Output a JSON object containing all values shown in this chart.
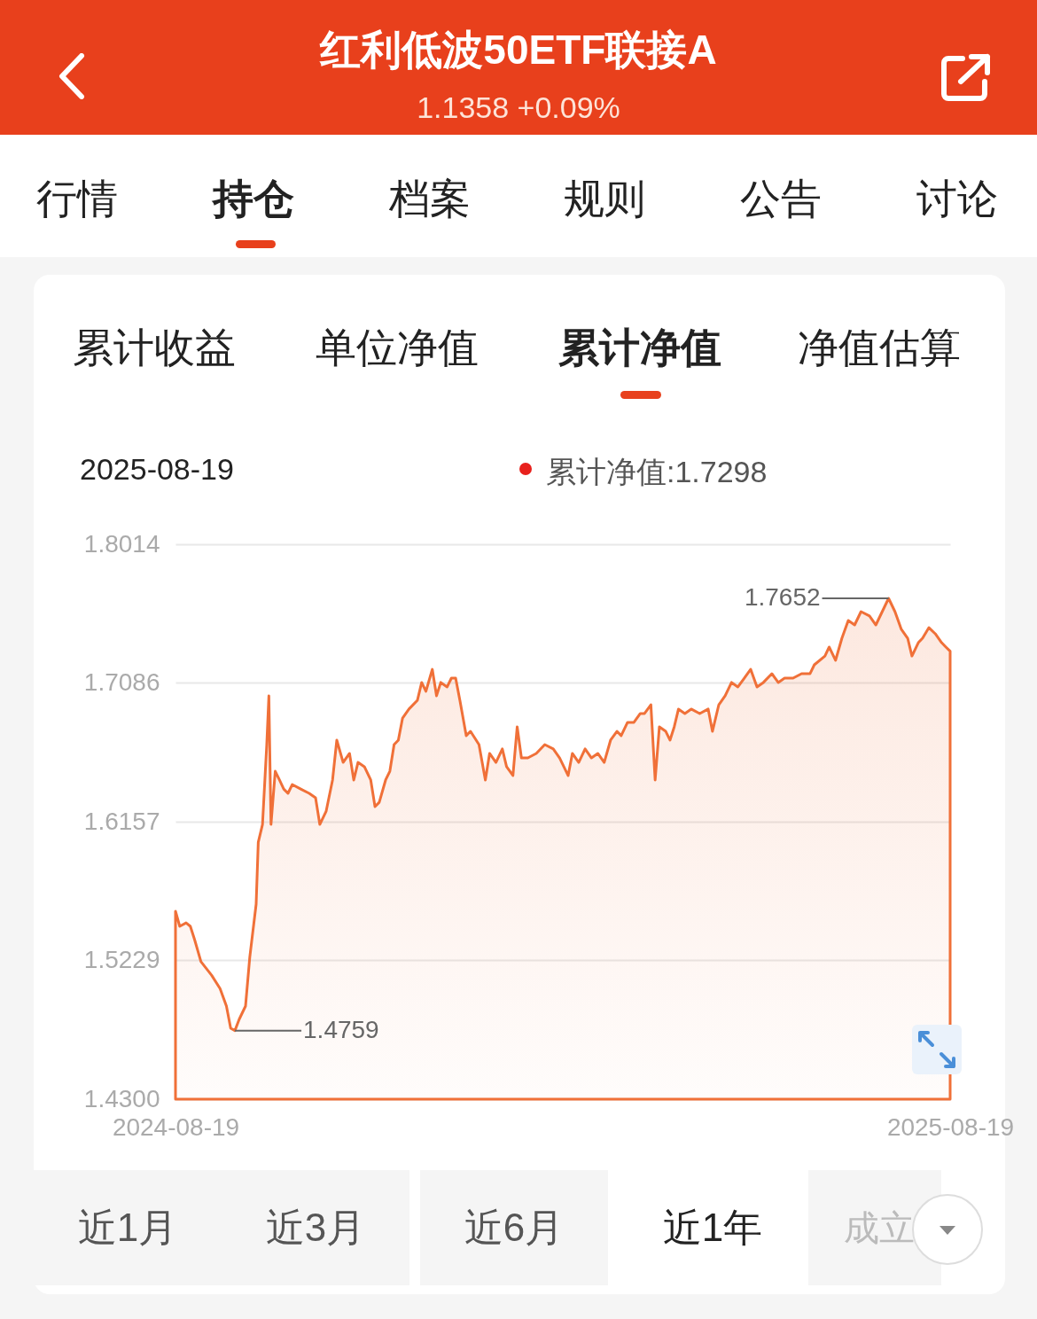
{
  "chart_data": {
    "type": "area",
    "title": "红利低波50ETF联接A",
    "subtitle": "1.1358 +0.09%",
    "x": [
      "2024-08-19",
      "2024-08-21",
      "2024-08-24",
      "2024-08-26",
      "2024-08-28",
      "2024-08-31",
      "2024-09-05",
      "2024-09-09",
      "2024-09-12",
      "2024-09-14",
      "2024-09-16",
      "2024-09-18",
      "2024-09-21",
      "2024-09-23",
      "2024-09-26",
      "2024-09-27",
      "2024-09-29",
      "2024-10-01",
      "2024-10-02",
      "2024-10-03",
      "2024-10-05",
      "2024-10-07",
      "2024-10-09",
      "2024-10-11",
      "2024-10-13",
      "2024-10-17",
      "2024-10-21",
      "2024-10-24",
      "2024-10-26",
      "2024-10-29",
      "2024-11-01",
      "2024-11-03",
      "2024-11-06",
      "2024-11-09",
      "2024-11-11",
      "2024-11-13",
      "2024-11-16",
      "2024-11-19",
      "2024-11-21",
      "2024-11-23",
      "2024-11-26",
      "2024-11-28",
      "2024-11-30",
      "2024-12-02",
      "2024-12-04",
      "2024-12-07",
      "2024-12-11",
      "2024-12-13",
      "2024-12-15",
      "2024-12-18",
      "2024-12-20",
      "2024-12-22",
      "2024-12-25",
      "2024-12-27",
      "2024-12-29",
      "2024-12-31",
      "2025-01-03",
      "2025-01-05",
      "2025-01-09",
      "2025-01-12",
      "2025-01-14",
      "2025-01-17",
      "2025-01-20",
      "2025-01-22",
      "2025-01-25",
      "2025-01-27",
      "2025-01-29",
      "2025-02-01",
      "2025-02-05",
      "2025-02-09",
      "2025-02-13",
      "2025-02-16",
      "2025-02-20",
      "2025-02-22",
      "2025-02-25",
      "2025-02-28",
      "2025-03-03",
      "2025-03-06",
      "2025-03-09",
      "2025-03-12",
      "2025-03-15",
      "2025-03-17",
      "2025-03-20",
      "2025-03-23",
      "2025-03-26",
      "2025-03-28",
      "2025-03-31",
      "2025-04-02",
      "2025-04-04",
      "2025-04-07",
      "2025-04-09",
      "2025-04-11",
      "2025-04-13",
      "2025-04-16",
      "2025-04-19",
      "2025-04-23",
      "2025-04-27",
      "2025-04-29",
      "2025-05-02",
      "2025-05-05",
      "2025-05-08",
      "2025-05-11",
      "2025-05-14",
      "2025-05-17",
      "2025-05-20",
      "2025-05-23",
      "2025-05-27",
      "2025-05-30",
      "2025-06-02",
      "2025-06-06",
      "2025-06-10",
      "2025-06-14",
      "2025-06-16",
      "2025-06-21",
      "2025-06-23",
      "2025-06-26",
      "2025-06-29",
      "2025-07-02",
      "2025-07-05",
      "2025-07-08",
      "2025-07-12",
      "2025-07-15",
      "2025-07-18",
      "2025-07-21",
      "2025-07-24",
      "2025-07-27",
      "2025-07-30",
      "2025-08-01",
      "2025-08-04",
      "2025-08-06",
      "2025-08-09",
      "2025-08-12",
      "2025-08-15",
      "2025-08-17",
      "2025-08-19"
    ],
    "series": [
      {
        "color": "#f07038",
        "values": [
          1.5558,
          1.5457,
          1.548,
          1.5457,
          1.5368,
          1.522,
          1.513,
          1.504,
          1.4923,
          1.4775,
          1.4759,
          1.4834,
          1.4923,
          1.525,
          1.5605,
          1.602,
          1.6139,
          1.6673,
          1.6999,
          1.6139,
          1.6495,
          1.6436,
          1.6376,
          1.6347,
          1.6406,
          1.6376,
          1.6347,
          1.6317,
          1.6139,
          1.6228,
          1.6436,
          1.6703,
          1.6554,
          1.6614,
          1.6436,
          1.6554,
          1.6525,
          1.6436,
          1.6258,
          1.6287,
          1.6436,
          1.6495,
          1.6673,
          1.6703,
          1.6851,
          1.6911,
          1.697,
          1.7089,
          1.703,
          1.7177,
          1.7,
          1.7089,
          1.7059,
          1.7118,
          1.7118,
          1.697,
          1.6733,
          1.6762,
          1.6673,
          1.6436,
          1.6614,
          1.6554,
          1.6644,
          1.6525,
          1.6466,
          1.6792,
          1.6584,
          1.6584,
          1.6614,
          1.6673,
          1.6644,
          1.6584,
          1.6466,
          1.6614,
          1.6554,
          1.6644,
          1.6584,
          1.6614,
          1.6554,
          1.6703,
          1.6762,
          1.6733,
          1.6822,
          1.6822,
          1.6881,
          1.6881,
          1.694,
          1.6436,
          1.6792,
          1.6762,
          1.6703,
          1.6792,
          1.6911,
          1.6881,
          1.6911,
          1.6881,
          1.6911,
          1.6762,
          1.694,
          1.7,
          1.7089,
          1.7059,
          1.7118,
          1.7177,
          1.7059,
          1.7089,
          1.7148,
          1.7089,
          1.7118,
          1.7118,
          1.7148,
          1.7148,
          1.7207,
          1.7266,
          1.7326,
          1.7237,
          1.7385,
          1.7504,
          1.7474,
          1.7563,
          1.7534,
          1.7474,
          1.7563,
          1.7652,
          1.7563,
          1.7445,
          1.7385,
          1.7266,
          1.7355,
          1.7385,
          1.7456,
          1.7415,
          1.7355,
          1.7326,
          1.7298
        ]
      }
    ],
    "xlim": [
      "2024-08-19",
      "2025-08-19"
    ],
    "xticks": [
      "2024-08-19",
      "2025-08-19"
    ],
    "ylim": [
      1.43,
      1.8014
    ],
    "yticks": [
      {
        "value": 1.43,
        "label": "1.4300"
      },
      {
        "value": 1.5229,
        "label": "1.5229"
      },
      {
        "value": 1.6157,
        "label": "1.6157"
      },
      {
        "value": 1.7086,
        "label": "1.7086"
      },
      {
        "value": 1.8014,
        "label": "1.8014"
      }
    ],
    "grid": "y",
    "annotations": [
      "行情",
      "持仓",
      "档案",
      "规则",
      "公告",
      "讨论",
      "累计收益",
      "单位净值",
      "累计净值",
      "净值估算",
      "2025-08-19",
      "累计净值:1.7298",
      "近1月",
      "近3月",
      "近6月",
      "近1年",
      "成立来",
      {
        "text": "1.4759",
        "x": "2024-09-16",
        "y": 1.4759
      },
      {
        "text": "1.7652",
        "x": "2025-07-21",
        "y": 1.7652
      }
    ]
  }
}
